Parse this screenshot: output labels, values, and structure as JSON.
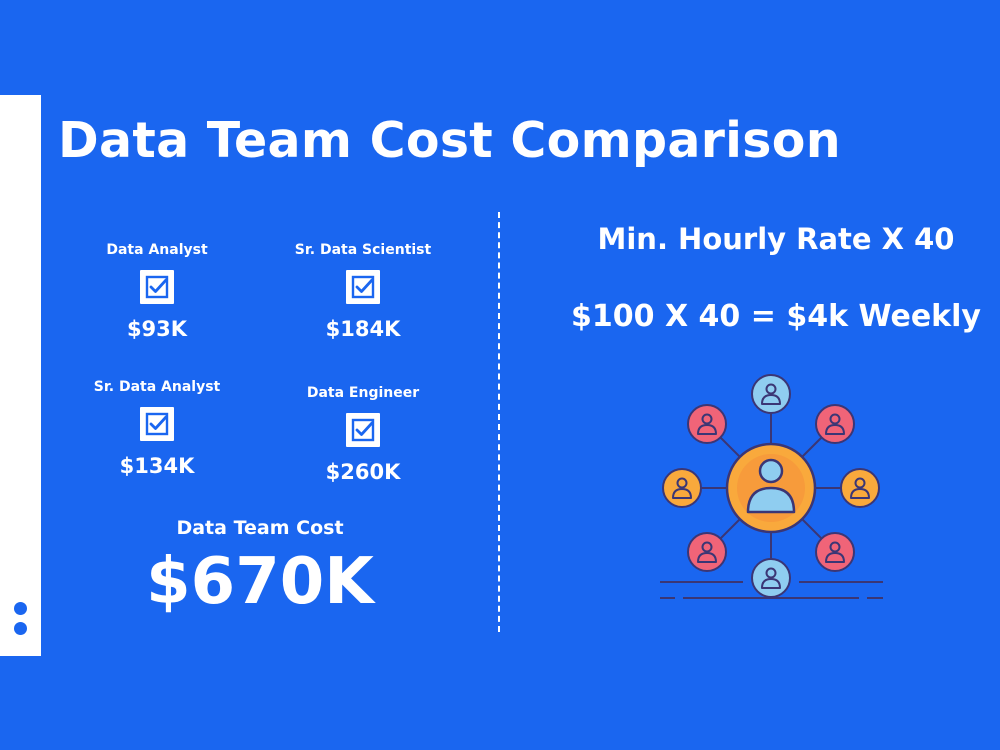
{
  "title": "Data Team Cost Comparison",
  "roles": [
    {
      "label": "Data Analyst",
      "amount": "$93K"
    },
    {
      "label": "Sr. Data Scientist",
      "amount": "$184K"
    },
    {
      "label": "Sr. Data Analyst",
      "amount": "$134K"
    },
    {
      "label": "Data Engineer",
      "amount": "$260K"
    }
  ],
  "total": {
    "label": "Data Team Cost",
    "value": "$670K"
  },
  "formula": {
    "line1": "Min. Hourly Rate X 40",
    "line2": "$100 X 40 = $4k Weekly"
  },
  "icons": {
    "checkbox": "checkbox-checked-icon",
    "network": "team-network-icon"
  },
  "colors": {
    "background": "#1a66f0",
    "text": "#ffffff",
    "node_pink": "#f06478",
    "node_orange": "#f9a93c",
    "node_blue": "#8fcdf0",
    "outline": "#3b3675"
  }
}
